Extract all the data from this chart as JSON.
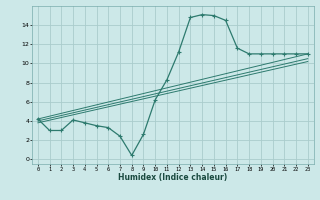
{
  "xlabel": "Humidex (Indice chaleur)",
  "bg_color": "#cce8e8",
  "grid_color": "#aacccc",
  "line_color": "#2d7a6e",
  "xlim": [
    -0.5,
    23.5
  ],
  "ylim": [
    -0.5,
    16
  ],
  "xticks": [
    0,
    1,
    2,
    3,
    4,
    5,
    6,
    7,
    8,
    9,
    10,
    11,
    12,
    13,
    14,
    15,
    16,
    17,
    18,
    19,
    20,
    21,
    22,
    23
  ],
  "yticks": [
    0,
    2,
    4,
    6,
    8,
    10,
    12,
    14
  ],
  "curve1_x": [
    0,
    1,
    2,
    3,
    4,
    5,
    6,
    7,
    8,
    9,
    10,
    11,
    12,
    13,
    14,
    15,
    16,
    17,
    18,
    19,
    20,
    21,
    22,
    23
  ],
  "curve1_y": [
    4.2,
    3.0,
    3.0,
    4.1,
    3.8,
    3.5,
    3.3,
    2.4,
    0.4,
    2.6,
    6.2,
    8.3,
    11.2,
    14.8,
    15.1,
    15.0,
    14.5,
    11.6,
    11.0,
    11.0,
    11.0,
    11.0,
    11.0,
    11.0
  ],
  "line1_x": [
    0,
    23
  ],
  "line1_y": [
    4.2,
    11.0
  ],
  "line2_x": [
    0,
    23
  ],
  "line2_y": [
    4.0,
    10.5
  ],
  "line3_x": [
    0,
    23
  ],
  "line3_y": [
    3.8,
    10.2
  ]
}
